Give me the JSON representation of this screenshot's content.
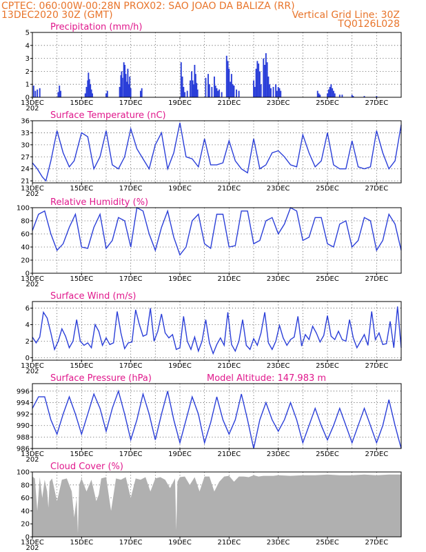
{
  "header": {
    "line1_left": "CPTEC:   060:00W-00:28N   PROX02: SAO JOAO DA BALIZA (RR)",
    "line2_left": "13DEC2020 30Z (GMT)",
    "line2_right": "Vertical Grid Line: 30Z",
    "line3_right": "TQ0126L028"
  },
  "x_ticks": [
    "13DEC",
    "15DEC",
    "17DEC",
    "19DEC",
    "21DEC",
    "23DEC",
    "25DEC",
    "27DEC"
  ],
  "x_ticks_sub": "202",
  "colors": {
    "line": "#2a3ed8",
    "bars": "#2a3ed8",
    "cloud": "#b0b0b0",
    "title": "#e0188c",
    "header": "#e8742a"
  },
  "chart_data": [
    {
      "id": "precip",
      "type": "bar",
      "title": "Precipitation (mm/h)",
      "ylim": [
        0,
        5
      ],
      "yticks": [
        0,
        1,
        2,
        3,
        4,
        5
      ],
      "xlim_days": [
        13,
        28
      ],
      "bars": [
        [
          13.05,
          0.9
        ],
        [
          13.12,
          0.5
        ],
        [
          13.2,
          0.6
        ],
        [
          13.3,
          0.7
        ],
        [
          14.05,
          0.4
        ],
        [
          14.1,
          0.9
        ],
        [
          14.15,
          0.5
        ],
        [
          15.15,
          0.3
        ],
        [
          15.2,
          0.8
        ],
        [
          15.25,
          1.3
        ],
        [
          15.28,
          1.9
        ],
        [
          15.32,
          1.4
        ],
        [
          15.36,
          1.0
        ],
        [
          15.4,
          0.6
        ],
        [
          15.44,
          0.3
        ],
        [
          16.0,
          0.3
        ],
        [
          16.05,
          0.5
        ],
        [
          16.55,
          0.8
        ],
        [
          16.6,
          1.7
        ],
        [
          16.63,
          2.0
        ],
        [
          16.66,
          1.5
        ],
        [
          16.72,
          2.7
        ],
        [
          16.76,
          2.5
        ],
        [
          16.8,
          1.8
        ],
        [
          16.84,
          1.2
        ],
        [
          16.88,
          2.2
        ],
        [
          16.92,
          1.0
        ],
        [
          16.96,
          1.6
        ],
        [
          17.0,
          0.7
        ],
        [
          17.4,
          0.5
        ],
        [
          17.45,
          0.7
        ],
        [
          19.05,
          2.7
        ],
        [
          19.1,
          1.6
        ],
        [
          19.15,
          0.8
        ],
        [
          19.2,
          0.4
        ],
        [
          19.3,
          0.5
        ],
        [
          19.42,
          1.3
        ],
        [
          19.48,
          2.0
        ],
        [
          19.52,
          1.3
        ],
        [
          19.56,
          1.0
        ],
        [
          19.6,
          2.5
        ],
        [
          19.64,
          1.8
        ],
        [
          19.68,
          1.1
        ],
        [
          19.72,
          0.6
        ],
        [
          20.05,
          1.5
        ],
        [
          20.15,
          1.8
        ],
        [
          20.2,
          1.0
        ],
        [
          20.3,
          0.8
        ],
        [
          20.4,
          1.6
        ],
        [
          20.45,
          0.9
        ],
        [
          20.5,
          0.7
        ],
        [
          20.55,
          0.5
        ],
        [
          20.6,
          0.6
        ],
        [
          20.7,
          0.4
        ],
        [
          20.9,
          3.2
        ],
        [
          20.95,
          2.8
        ],
        [
          21.0,
          2.2
        ],
        [
          21.05,
          1.2
        ],
        [
          21.1,
          1.8
        ],
        [
          21.15,
          1.0
        ],
        [
          21.2,
          0.9
        ],
        [
          21.3,
          0.6
        ],
        [
          21.4,
          0.5
        ],
        [
          22.0,
          1.3
        ],
        [
          22.05,
          0.8
        ],
        [
          22.1,
          2.2
        ],
        [
          22.15,
          2.8
        ],
        [
          22.2,
          2.6
        ],
        [
          22.25,
          2.0
        ],
        [
          22.3,
          1.0
        ],
        [
          22.4,
          3.0
        ],
        [
          22.45,
          2.5
        ],
        [
          22.5,
          3.4
        ],
        [
          22.55,
          2.7
        ],
        [
          22.6,
          1.6
        ],
        [
          22.65,
          1.0
        ],
        [
          22.7,
          0.7
        ],
        [
          22.8,
          0.8
        ],
        [
          22.9,
          1.0
        ],
        [
          22.95,
          0.5
        ],
        [
          23.0,
          0.8
        ],
        [
          23.05,
          0.7
        ],
        [
          23.1,
          0.5
        ],
        [
          24.6,
          0.5
        ],
        [
          24.65,
          0.3
        ],
        [
          24.7,
          0.2
        ],
        [
          25.0,
          0.3
        ],
        [
          25.05,
          0.6
        ],
        [
          25.1,
          0.8
        ],
        [
          25.15,
          1.0
        ],
        [
          25.2,
          0.7
        ],
        [
          25.25,
          0.5
        ],
        [
          25.3,
          0.3
        ],
        [
          25.5,
          0.2
        ],
        [
          25.6,
          0.2
        ],
        [
          26.0,
          0.2
        ],
        [
          26.05,
          0.1
        ],
        [
          26.5,
          0.1
        ],
        [
          27.0,
          0.1
        ]
      ]
    },
    {
      "id": "temp",
      "type": "line",
      "title": "Surface Temperature (nC)",
      "ylim": [
        20.5,
        36
      ],
      "yticks": [
        21,
        24,
        27,
        30,
        33,
        36
      ],
      "xlim_days": [
        13,
        28
      ],
      "x": [
        13.0,
        13.2,
        13.4,
        13.55,
        13.75,
        14.0,
        14.25,
        14.5,
        14.7,
        15.0,
        15.25,
        15.5,
        15.75,
        16.0,
        16.25,
        16.5,
        16.75,
        17.0,
        17.25,
        17.5,
        17.75,
        18.0,
        18.25,
        18.5,
        18.75,
        19.0,
        19.25,
        19.5,
        19.75,
        20.0,
        20.25,
        20.5,
        20.75,
        21.0,
        21.25,
        21.5,
        21.75,
        22.0,
        22.25,
        22.5,
        22.75,
        23.0,
        23.25,
        23.5,
        23.75,
        24.0,
        24.25,
        24.5,
        24.75,
        25.0,
        25.25,
        25.5,
        25.75,
        26.0,
        26.25,
        26.5,
        26.75,
        27.0,
        27.25,
        27.5,
        27.75,
        28.0
      ],
      "y": [
        25.5,
        24,
        22,
        21,
        26,
        33.5,
        28,
        24.5,
        26,
        33,
        32,
        24,
        27,
        33.5,
        25,
        24,
        27,
        34,
        29,
        26.5,
        24,
        30,
        33,
        24,
        28,
        35.5,
        27,
        26.5,
        24.5,
        31.5,
        25,
        25,
        25.5,
        31,
        26,
        24,
        23,
        31.5,
        24,
        25,
        28,
        28.5,
        27,
        25,
        24.5,
        32.5,
        28,
        24.5,
        26,
        33,
        25,
        24,
        24,
        31,
        24.5,
        24,
        24.5,
        33.5,
        28,
        24,
        26,
        35
      ]
    },
    {
      "id": "rh",
      "type": "line",
      "title": "Relative Humidity (%)",
      "ylim": [
        0,
        100
      ],
      "yticks": [
        0,
        20,
        40,
        60,
        80,
        100
      ],
      "xlim_days": [
        13,
        28
      ],
      "x": [
        13.0,
        13.25,
        13.5,
        13.75,
        14.0,
        14.25,
        14.5,
        14.75,
        15.0,
        15.25,
        15.5,
        15.75,
        16.0,
        16.25,
        16.5,
        16.75,
        17.0,
        17.25,
        17.5,
        17.75,
        18.0,
        18.25,
        18.5,
        18.75,
        19.0,
        19.25,
        19.5,
        19.75,
        20.0,
        20.25,
        20.5,
        20.75,
        21.0,
        21.25,
        21.5,
        21.75,
        22.0,
        22.25,
        22.5,
        22.75,
        23.0,
        23.25,
        23.5,
        23.75,
        24.0,
        24.25,
        24.5,
        24.75,
        25.0,
        25.25,
        25.5,
        25.75,
        26.0,
        26.25,
        26.5,
        26.75,
        27.0,
        27.25,
        27.5,
        27.75,
        28.0
      ],
      "y": [
        65,
        90,
        95,
        60,
        35,
        45,
        70,
        90,
        40,
        38,
        70,
        90,
        38,
        50,
        85,
        80,
        40,
        100,
        95,
        60,
        35,
        70,
        95,
        55,
        28,
        40,
        80,
        90,
        45,
        38,
        90,
        90,
        40,
        42,
        95,
        95,
        45,
        50,
        80,
        85,
        60,
        75,
        100,
        95,
        50,
        55,
        85,
        85,
        45,
        40,
        75,
        80,
        40,
        50,
        85,
        80,
        35,
        50,
        90,
        75,
        35
      ]
    },
    {
      "id": "wind",
      "type": "line",
      "title": "Surface Wind (m/s)",
      "ylim": [
        -0.3,
        6.8
      ],
      "yticks": [
        0,
        2,
        4,
        6
      ],
      "xlim_days": [
        13,
        28
      ],
      "x": [
        13.0,
        13.15,
        13.3,
        13.45,
        13.6,
        13.75,
        13.9,
        14.05,
        14.2,
        14.35,
        14.5,
        14.65,
        14.8,
        14.95,
        15.1,
        15.25,
        15.4,
        15.55,
        15.7,
        15.85,
        16.0,
        16.15,
        16.3,
        16.45,
        16.6,
        16.75,
        16.9,
        17.05,
        17.2,
        17.35,
        17.5,
        17.65,
        17.8,
        17.95,
        18.1,
        18.25,
        18.4,
        18.55,
        18.7,
        18.85,
        19.0,
        19.15,
        19.3,
        19.45,
        19.6,
        19.75,
        19.9,
        20.05,
        20.2,
        20.35,
        20.5,
        20.65,
        20.8,
        20.95,
        21.1,
        21.25,
        21.4,
        21.55,
        21.7,
        21.85,
        22.0,
        22.15,
        22.3,
        22.45,
        22.6,
        22.75,
        22.9,
        23.05,
        23.2,
        23.35,
        23.5,
        23.65,
        23.8,
        23.95,
        24.1,
        24.25,
        24.4,
        24.55,
        24.7,
        24.85,
        25.0,
        25.15,
        25.3,
        25.45,
        25.6,
        25.75,
        25.9,
        26.05,
        26.2,
        26.35,
        26.5,
        26.65,
        26.8,
        26.95,
        27.1,
        27.25,
        27.4,
        27.55,
        27.7,
        27.85,
        28.0
      ],
      "y": [
        2.5,
        1.8,
        2.5,
        5.5,
        4.8,
        3.0,
        1.0,
        2.0,
        3.5,
        2.6,
        1.2,
        2.0,
        4.6,
        2.0,
        1.5,
        1.8,
        1.2,
        4.0,
        3.2,
        1.5,
        2.4,
        1.6,
        1.8,
        5.6,
        3.0,
        1.1,
        1.8,
        1.9,
        5.8,
        4.0,
        2.6,
        2.8,
        6.0,
        2.0,
        3.2,
        5.3,
        3.0,
        2.4,
        2.8,
        1.0,
        1.2,
        5.0,
        2.0,
        1.0,
        2.5,
        0.8,
        2.0,
        4.6,
        1.8,
        0.5,
        1.6,
        2.4,
        1.5,
        5.5,
        1.6,
        0.8,
        2.0,
        4.6,
        1.5,
        1.0,
        2.3,
        1.5,
        3.0,
        5.5,
        1.8,
        1.0,
        2.0,
        3.9,
        2.4,
        1.5,
        2.2,
        2.5,
        5.0,
        1.4,
        2.8,
        2.2,
        3.8,
        3.0,
        1.9,
        2.7,
        5.1,
        2.6,
        2.2,
        3.2,
        2.2,
        2.0,
        4.6,
        2.4,
        1.2,
        2.0,
        2.8,
        1.5,
        5.6,
        2.2,
        3.0,
        1.6,
        1.7,
        4.4,
        1.2,
        6.2,
        1.2
      ]
    },
    {
      "id": "pres",
      "type": "line",
      "title": "Surface Pressure (hPa)",
      "subtitle": "Model Altitude: 147.983  m",
      "ylim": [
        986,
        997.3
      ],
      "yticks": [
        986,
        988,
        990,
        992,
        994,
        996
      ],
      "xlim_days": [
        13,
        28
      ],
      "x": [
        13.0,
        13.25,
        13.5,
        13.75,
        14.0,
        14.25,
        14.5,
        14.75,
        15.0,
        15.25,
        15.5,
        15.75,
        16.0,
        16.25,
        16.5,
        16.75,
        17.0,
        17.25,
        17.5,
        17.75,
        18.0,
        18.25,
        18.5,
        18.75,
        19.0,
        19.25,
        19.5,
        19.75,
        20.0,
        20.25,
        20.5,
        20.75,
        21.0,
        21.25,
        21.5,
        21.75,
        22.0,
        22.25,
        22.5,
        22.75,
        23.0,
        23.25,
        23.5,
        23.75,
        24.0,
        24.25,
        24.5,
        24.75,
        25.0,
        25.25,
        25.5,
        25.75,
        26.0,
        26.25,
        26.5,
        26.75,
        27.0,
        27.25,
        27.5,
        27.75,
        28.0
      ],
      "y": [
        993,
        995,
        995,
        991,
        988.5,
        992,
        995,
        992,
        988.5,
        992,
        995.5,
        993,
        989,
        993,
        996,
        992,
        987.5,
        991,
        995.5,
        992,
        987.5,
        992,
        996,
        991,
        987,
        991,
        995,
        992,
        987,
        990.5,
        995,
        991,
        988.5,
        991,
        995.5,
        991,
        986,
        991,
        994,
        991,
        989,
        991,
        994,
        991,
        987,
        990,
        993,
        990,
        987.5,
        990,
        993,
        990,
        987,
        990,
        993,
        990,
        987,
        990,
        994.5,
        990,
        986
      ]
    },
    {
      "id": "cloud",
      "type": "area",
      "title": "Cloud Cover (%)",
      "ylim": [
        0,
        100
      ],
      "yticks": [
        0,
        20,
        40,
        60,
        80,
        100
      ],
      "xlim_days": [
        13,
        28
      ],
      "x": [
        13.0,
        13.1,
        13.2,
        13.3,
        13.4,
        13.5,
        13.6,
        13.65,
        13.7,
        13.8,
        14.0,
        14.2,
        14.4,
        14.6,
        14.7,
        14.8,
        14.85,
        14.9,
        15.0,
        15.2,
        15.4,
        15.6,
        15.7,
        15.8,
        16.0,
        16.2,
        16.4,
        16.6,
        16.8,
        17.0,
        17.2,
        17.4,
        17.6,
        17.8,
        18.0,
        18.2,
        18.4,
        18.6,
        18.8,
        18.85,
        18.9,
        19.0,
        19.2,
        19.4,
        19.6,
        19.8,
        20.0,
        20.2,
        20.4,
        20.6,
        20.8,
        21.0,
        21.2,
        21.4,
        21.6,
        21.8,
        22.0,
        22.2,
        22.4,
        22.6,
        22.8,
        23.0,
        23.5,
        24.0,
        24.5,
        25.0,
        25.5,
        26.0,
        26.5,
        27.0,
        27.5,
        28.0
      ],
      "y": [
        93,
        90,
        40,
        92,
        60,
        88,
        70,
        45,
        85,
        90,
        55,
        88,
        90,
        70,
        30,
        60,
        5,
        80,
        90,
        70,
        88,
        55,
        65,
        90,
        92,
        40,
        90,
        88,
        92,
        60,
        90,
        88,
        92,
        70,
        90,
        92,
        88,
        75,
        90,
        10,
        85,
        92,
        93,
        80,
        92,
        70,
        93,
        93,
        70,
        85,
        93,
        94,
        85,
        93,
        93,
        92,
        95,
        93,
        94,
        94,
        94,
        95,
        94,
        95,
        95,
        96,
        95,
        95,
        96,
        95,
        96,
        96
      ]
    }
  ]
}
